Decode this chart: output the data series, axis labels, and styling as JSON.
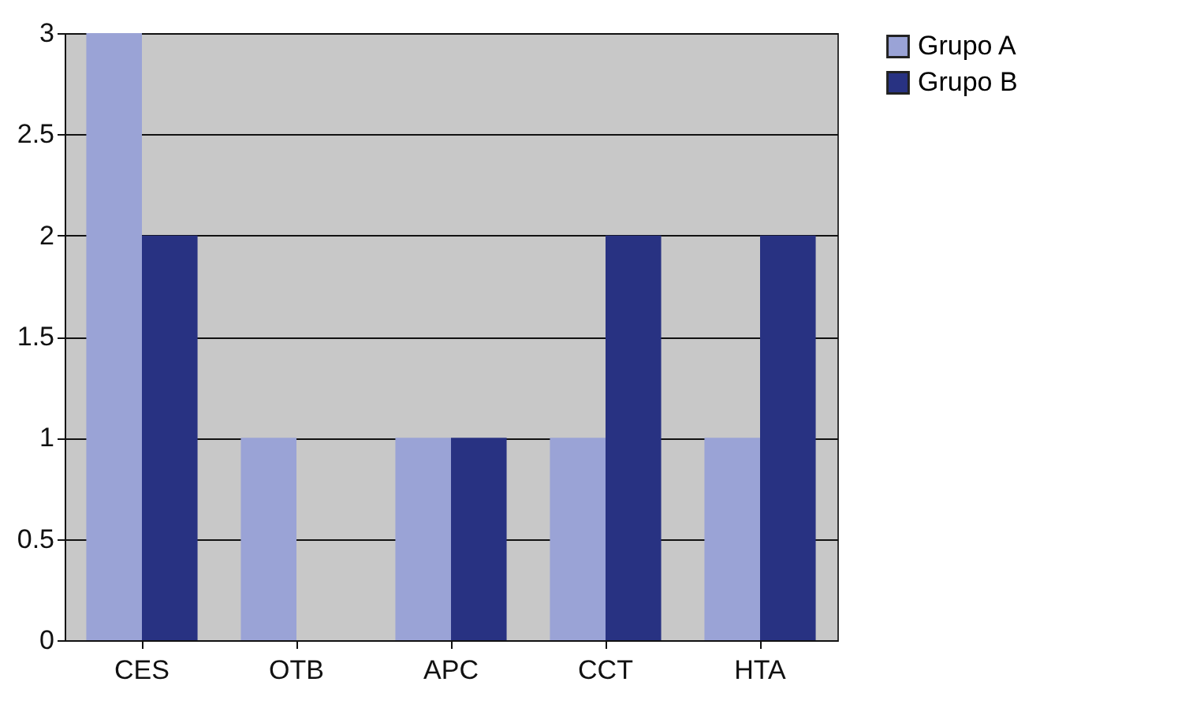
{
  "chart_data": {
    "type": "bar",
    "categories": [
      "CES",
      "OTB",
      "APC",
      "CCT",
      "HTA"
    ],
    "series": [
      {
        "name": "Grupo A",
        "color": "#9aa3d6",
        "values": [
          3,
          1,
          1,
          1,
          1
        ]
      },
      {
        "name": "Grupo B",
        "color": "#283282",
        "values": [
          2,
          0,
          1,
          2,
          2
        ]
      }
    ],
    "ylim": [
      0,
      3
    ],
    "yticks": [
      0,
      0.5,
      1,
      1.5,
      2,
      2.5,
      3
    ],
    "grid": "y",
    "legend": "right"
  }
}
